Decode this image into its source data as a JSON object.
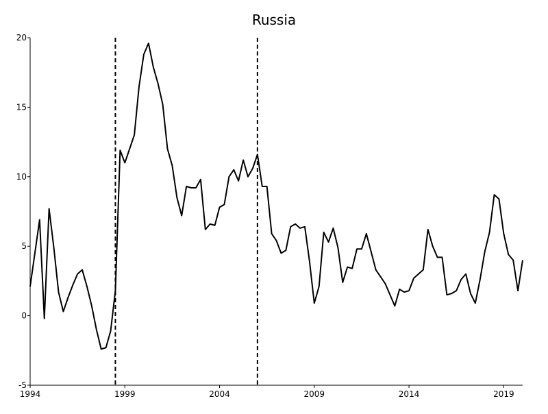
{
  "chart_data": {
    "type": "line",
    "title": "Russia",
    "xlabel": "",
    "ylabel": "",
    "xlim": [
      1994.0,
      2020.0
    ],
    "ylim": [
      -5,
      20
    ],
    "x_ticks": [
      1994,
      1999,
      2004,
      2009,
      2014,
      2019
    ],
    "y_ticks": [
      -5,
      0,
      5,
      10,
      15,
      20
    ],
    "grid": false,
    "legend": "none",
    "line_color": "#000000",
    "vertical_reference_lines": [
      {
        "x": 1998.5,
        "style": "dashed"
      },
      {
        "x": 2006.0,
        "style": "dashed"
      }
    ],
    "series": [
      {
        "x": [
          1994.0,
          1994.25,
          1994.5,
          1994.75,
          1995.0,
          1995.25,
          1995.5,
          1995.75,
          1996.0,
          1996.25,
          1996.5,
          1996.75,
          1997.0,
          1997.25,
          1997.5,
          1997.75,
          1998.0,
          1998.25,
          1998.5,
          1998.75,
          1999.0,
          1999.25,
          1999.5,
          1999.75,
          2000.0,
          2000.25,
          2000.5,
          2000.75,
          2001.0,
          2001.25,
          2001.5,
          2001.75,
          2002.0,
          2002.25,
          2002.5,
          2002.75,
          2003.0,
          2003.25,
          2003.5,
          2003.75,
          2004.0,
          2004.25,
          2004.5,
          2004.75,
          2005.0,
          2005.25,
          2005.5,
          2005.75,
          2006.0,
          2006.25,
          2006.5,
          2006.75,
          2007.0,
          2007.25,
          2007.5,
          2007.75,
          2008.0,
          2008.25,
          2008.5,
          2008.75,
          2009.0,
          2009.25,
          2009.5,
          2009.75,
          2010.0,
          2010.25,
          2010.5,
          2010.75,
          2011.0,
          2011.25,
          2011.5,
          2011.75,
          2012.0,
          2012.25,
          2012.5,
          2012.75,
          2013.0,
          2013.25,
          2013.5,
          2013.75,
          2014.0,
          2014.25,
          2014.5,
          2014.75,
          2015.0,
          2015.25,
          2015.5,
          2015.75,
          2016.0,
          2016.25,
          2016.5,
          2016.75,
          2017.0,
          2017.25,
          2017.5,
          2017.75,
          2018.0,
          2018.25,
          2018.5,
          2018.75,
          2019.0,
          2019.25,
          2019.5,
          2019.75,
          2020.0
        ],
        "y": [
          2.1,
          4.5,
          6.9,
          -0.2,
          7.7,
          4.9,
          1.7,
          0.3,
          1.3,
          2.2,
          3.0,
          3.3,
          2.1,
          0.7,
          -1.0,
          -2.4,
          -2.3,
          -1.1,
          1.8,
          11.9,
          11.0,
          12.0,
          13.0,
          16.5,
          18.8,
          19.6,
          17.9,
          16.7,
          15.2,
          12.0,
          10.8,
          8.5,
          7.2,
          9.3,
          9.2,
          9.2,
          9.8,
          6.2,
          6.6,
          6.5,
          7.8,
          8.0,
          10.0,
          10.5,
          9.7,
          11.2,
          10.0,
          10.6,
          11.6,
          9.3,
          9.3,
          5.9,
          5.4,
          4.5,
          4.7,
          6.4,
          6.6,
          6.3,
          6.4,
          3.9,
          0.9,
          2.1,
          6.0,
          5.3,
          6.3,
          4.9,
          2.4,
          3.5,
          3.4,
          4.8,
          4.8,
          5.9,
          4.6,
          3.3,
          2.8,
          2.3,
          1.5,
          0.7,
          1.9,
          1.7,
          1.8,
          2.7,
          3.0,
          3.3,
          6.2,
          5.0,
          4.2,
          4.2,
          1.5,
          1.6,
          1.8,
          2.6,
          3.0,
          1.6,
          0.9,
          2.6,
          4.6,
          6.0,
          8.7,
          8.4,
          5.9,
          4.4,
          4.0,
          1.8,
          4.0
        ]
      }
    ]
  }
}
